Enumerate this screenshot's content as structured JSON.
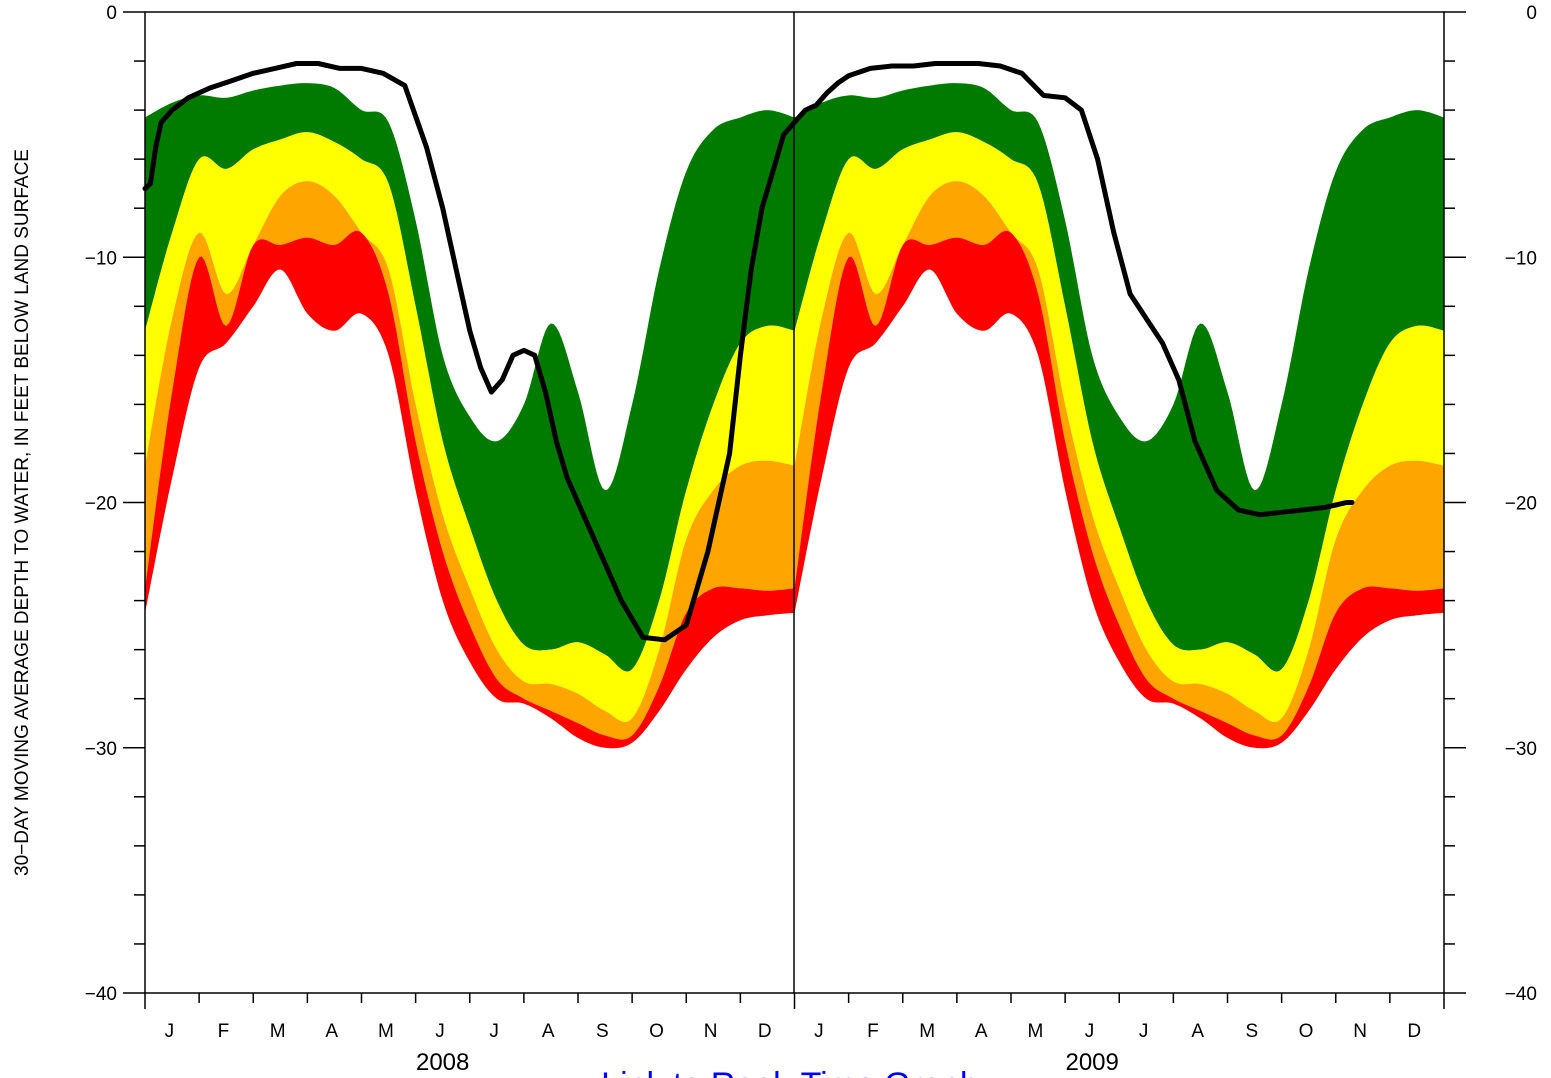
{
  "chart_data": {
    "type": "area",
    "ylabel": "30−DAY MOVING AVERAGE DEPTH TO WATER, IN FEET BELOW LAND SURFACE",
    "ylim": [
      -40,
      0
    ],
    "yticks": [
      0,
      -10,
      -20,
      -30,
      -40
    ],
    "ytick_labels": [
      "0",
      "−10",
      "−20",
      "−30",
      "−40"
    ],
    "xlim": [
      0,
      24
    ],
    "months": [
      "J",
      "F",
      "M",
      "A",
      "M",
      "J",
      "J",
      "A",
      "S",
      "O",
      "N",
      "D",
      "J",
      "F",
      "M",
      "A",
      "M",
      "J",
      "J",
      "A",
      "S",
      "O",
      "N",
      "D"
    ],
    "years": [
      {
        "label": "2008",
        "center_month": 6
      },
      {
        "label": "2009",
        "center_month": 18
      }
    ],
    "link_text": "Link to Real−Time Graph",
    "band_colors": {
      "green": "#007b00",
      "yellow": "#ffff00",
      "orange": "#ffa500",
      "red": "#ff0000",
      "line": "#000000"
    },
    "bands": {
      "x": [
        0,
        0.5,
        1,
        1.5,
        2,
        2.5,
        3,
        3.5,
        4,
        4.5,
        5,
        5.5,
        6,
        6.5,
        7,
        7.5,
        8,
        8.5,
        9,
        9.5,
        10,
        10.5,
        11,
        11.5,
        12
      ],
      "green_top": [
        -4.3,
        -3.7,
        -3.4,
        -3.5,
        -3.2,
        -3.0,
        -2.9,
        -3.1,
        -4.0,
        -4.5,
        -8.5,
        -14.0,
        -16.5,
        -17.5,
        -16.0,
        -12.7,
        -15.5,
        -19.5,
        -16.0,
        -10.5,
        -6.5,
        -4.8,
        -4.3,
        -4.0,
        -4.3
      ],
      "yellow_top": [
        -13.0,
        -9.0,
        -6.0,
        -6.4,
        -5.6,
        -5.2,
        -4.9,
        -5.3,
        -6.0,
        -7.0,
        -12.0,
        -17.5,
        -21.0,
        -24.0,
        -25.8,
        -26.0,
        -25.7,
        -26.2,
        -26.8,
        -24.0,
        -19.5,
        -16.0,
        -13.5,
        -12.8,
        -13.0
      ],
      "orange_top": [
        -18.5,
        -12.5,
        -9.0,
        -11.5,
        -9.5,
        -7.5,
        -6.9,
        -7.5,
        -9.0,
        -10.5,
        -16.0,
        -20.5,
        -23.5,
        -26.0,
        -27.3,
        -27.4,
        -27.8,
        -28.5,
        -28.8,
        -26.0,
        -21.5,
        -19.5,
        -18.5,
        -18.3,
        -18.5
      ],
      "red_top": [
        -23.5,
        -15.5,
        -10.0,
        -12.8,
        -9.5,
        -9.5,
        -9.2,
        -9.5,
        -9.0,
        -11.5,
        -17.5,
        -22.0,
        -25.0,
        -27.2,
        -28.0,
        -28.5,
        -29.0,
        -29.5,
        -29.5,
        -27.5,
        -24.5,
        -23.5,
        -23.5,
        -23.6,
        -23.5
      ],
      "red_bottom": [
        -24.5,
        -19.0,
        -14.5,
        -13.5,
        -12.0,
        -10.5,
        -12.3,
        -13.0,
        -12.3,
        -14.0,
        -19.5,
        -24.0,
        -26.5,
        -28.0,
        -28.2,
        -28.8,
        -29.6,
        -30.0,
        -29.8,
        -28.5,
        -26.8,
        -25.5,
        -24.8,
        -24.6,
        -24.5
      ]
    },
    "series": [
      {
        "x": [
          0,
          0.1,
          0.2,
          0.3,
          0.5,
          0.8,
          1.2,
          1.6,
          2.0,
          2.4,
          2.8,
          3.2,
          3.6,
          4.0,
          4.4,
          4.8,
          5.2,
          5.5,
          5.8,
          6.0,
          6.2,
          6.4,
          6.6,
          6.8,
          7.0,
          7.2,
          7.4,
          7.6,
          7.8,
          8.0,
          8.2,
          8.5,
          8.8,
          9.2,
          9.6,
          10.0,
          10.4,
          10.8,
          11.0,
          11.2,
          11.4,
          11.6,
          11.8,
          12.0,
          12.2,
          12.4,
          12.6,
          12.8,
          13.0,
          13.4,
          13.8,
          14.2,
          14.6,
          15.0,
          15.4,
          15.8,
          16.2,
          16.6,
          17.0,
          17.3,
          17.6,
          17.9,
          18.2,
          18.5,
          18.8,
          19.1,
          19.4,
          19.8,
          20.2,
          20.6,
          21.0,
          21.4,
          21.8,
          22.0,
          22.2,
          22.3
        ],
        "y": [
          -7.2,
          -7.0,
          -5.5,
          -4.5,
          -4.0,
          -3.5,
          -3.1,
          -2.8,
          -2.5,
          -2.3,
          -2.1,
          -2.1,
          -2.3,
          -2.3,
          -2.5,
          -3.0,
          -5.5,
          -8.0,
          -11.0,
          -13.0,
          -14.5,
          -15.5,
          -15.0,
          -14.0,
          -13.8,
          -14.0,
          -15.5,
          -17.5,
          -19.0,
          -20.0,
          -21.0,
          -22.5,
          -24.0,
          -25.5,
          -25.6,
          -25.0,
          -22.0,
          -18.0,
          -14.0,
          -10.5,
          -8.0,
          -6.5,
          -5.0,
          -4.5,
          -4.0,
          -3.8,
          -3.3,
          -2.9,
          -2.6,
          -2.3,
          -2.2,
          -2.2,
          -2.1,
          -2.1,
          -2.1,
          -2.2,
          -2.5,
          -3.4,
          -3.5,
          -4.0,
          -6.0,
          -9.0,
          -11.5,
          -12.5,
          -13.5,
          -15.0,
          -17.5,
          -19.5,
          -20.3,
          -20.5,
          -20.4,
          -20.3,
          -20.2,
          -20.1,
          -20.0,
          -20.0
        ]
      }
    ]
  }
}
